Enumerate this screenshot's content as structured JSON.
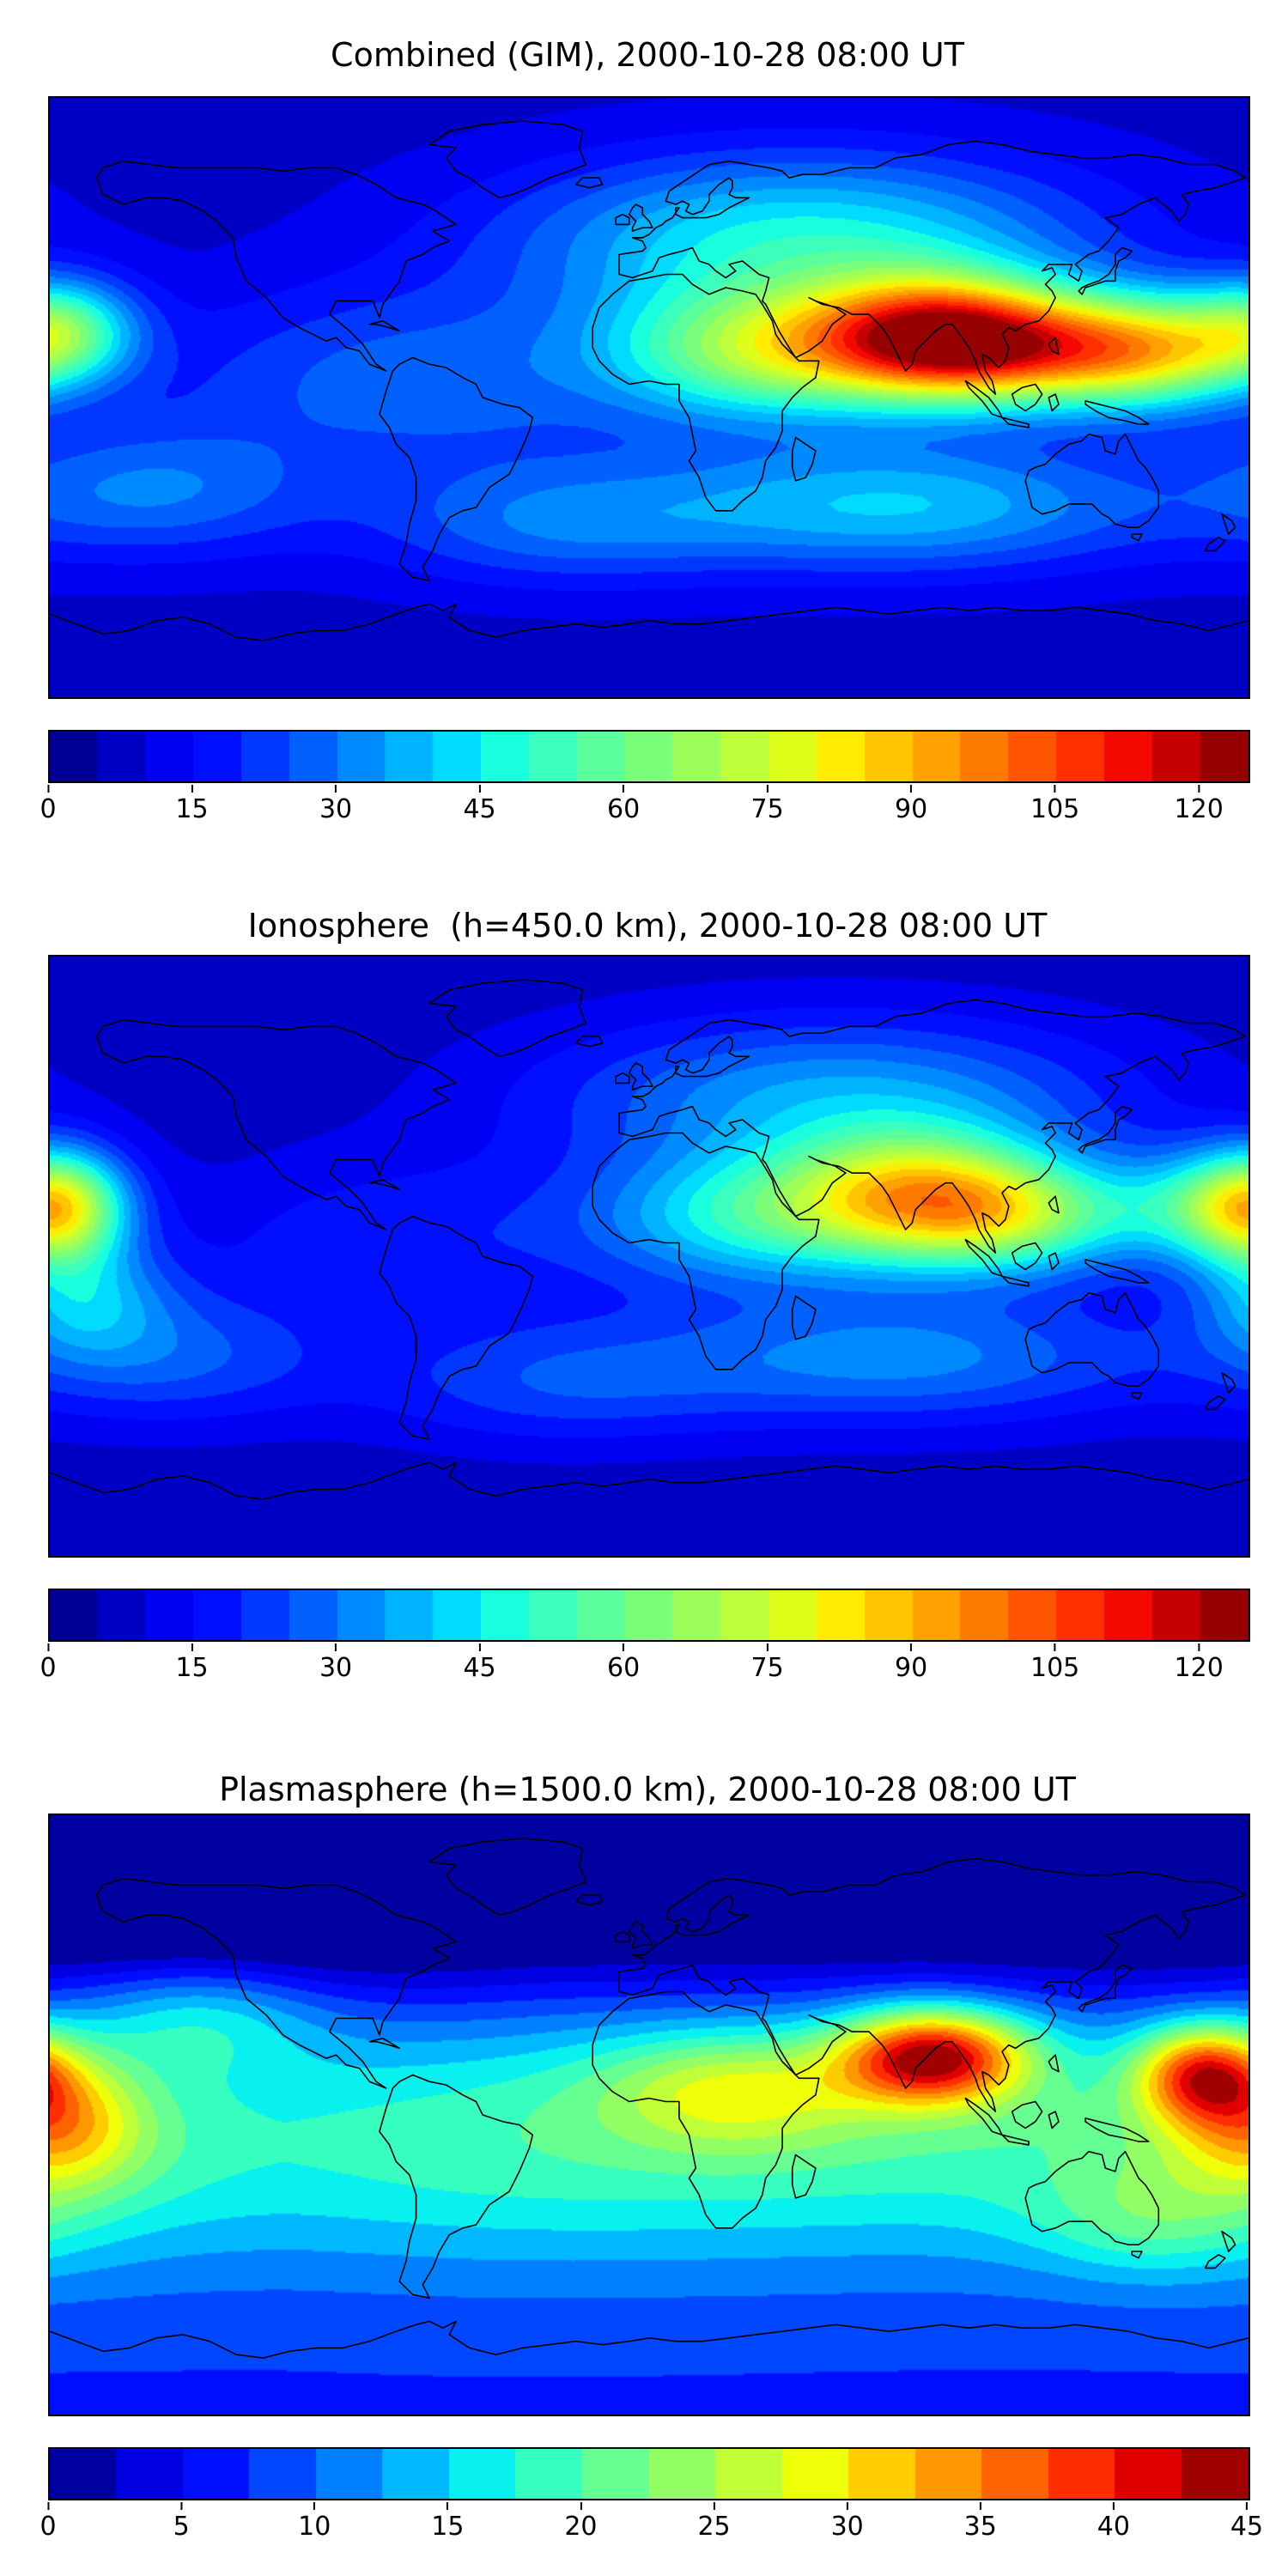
{
  "page": {
    "background": "#ffffff",
    "text_color": "#000000",
    "frame_color": "#000000"
  },
  "chart_data": [
    {
      "type": "heatmap",
      "title": "Combined (GIM), 2000-10-28 08:00 UT",
      "projection": "equirectangular",
      "lon_range": [
        -180,
        180
      ],
      "lat_range": [
        -90,
        90
      ],
      "colormap": "jet",
      "grid": false,
      "contour_levels": {
        "min": 0,
        "max": 125,
        "step": 5
      },
      "colorbar": {
        "orientation": "horizontal",
        "ticks": [
          0,
          15,
          30,
          45,
          60,
          75,
          90,
          105,
          120
        ]
      },
      "peak": {
        "value": 125,
        "lon": 85,
        "lat": 18
      },
      "field_model": {
        "base": 8,
        "gaussians": [
          [
            85,
            18,
            85,
            26,
            13
          ],
          [
            115,
            15,
            50,
            25,
            12
          ],
          [
            150,
            14,
            58,
            22,
            12
          ],
          [
            35,
            14,
            52,
            32,
            14
          ],
          [
            -177,
            20,
            45,
            16,
            11
          ],
          [
            75,
            -32,
            32,
            55,
            14
          ],
          [
            -30,
            -38,
            18,
            40,
            13
          ],
          [
            -150,
            -28,
            20,
            35,
            14
          ],
          [
            45,
            48,
            38,
            60,
            18
          ],
          [
            -70,
            5,
            20,
            55,
            20
          ]
        ]
      }
    },
    {
      "type": "heatmap",
      "title": "Ionosphere  (h=450.0 km), 2000-10-28 08:00 UT",
      "projection": "equirectangular",
      "lon_range": [
        -180,
        180
      ],
      "lat_range": [
        -90,
        90
      ],
      "colormap": "jet",
      "grid": false,
      "contour_levels": {
        "min": 0,
        "max": 125,
        "step": 5
      },
      "colorbar": {
        "orientation": "horizontal",
        "ticks": [
          0,
          15,
          30,
          45,
          60,
          75,
          90,
          105,
          120
        ]
      },
      "peak": {
        "value": 96,
        "lon": 80,
        "lat": 18
      },
      "field_model": {
        "base": 7,
        "gaussians": [
          [
            80,
            18,
            62,
            28,
            14
          ],
          [
            112,
            12,
            40,
            25,
            12
          ],
          [
            165,
            15,
            32,
            20,
            12
          ],
          [
            30,
            12,
            35,
            32,
            14
          ],
          [
            -177,
            15,
            58,
            14,
            12
          ],
          [
            -170,
            -12,
            25,
            18,
            12
          ],
          [
            75,
            -30,
            25,
            55,
            14
          ],
          [
            -30,
            -38,
            15,
            40,
            13
          ],
          [
            -145,
            -30,
            18,
            35,
            14
          ],
          [
            55,
            48,
            28,
            60,
            17
          ],
          [
            -70,
            5,
            12,
            50,
            18
          ]
        ]
      }
    },
    {
      "type": "heatmap",
      "title": "Plasmasphere (h=1500.0 km), 2000-10-28 08:00 UT",
      "projection": "equirectangular",
      "lon_range": [
        -180,
        180
      ],
      "lat_range": [
        -90,
        90
      ],
      "colormap": "jet",
      "grid": false,
      "contour_levels": {
        "min": 0,
        "max": 45,
        "step": 2.5
      },
      "colorbar": {
        "orientation": "horizontal",
        "ticks": [
          0,
          5,
          10,
          15,
          20,
          25,
          30,
          35,
          40,
          45
        ]
      },
      "peak": {
        "value": 43,
        "lon": 85,
        "lat": 18
      },
      "field_model": {
        "base": 7,
        "gaussians": [
          [
            -60,
            -8,
            10,
            70,
            28
          ],
          [
            70,
            -5,
            10,
            70,
            28
          ],
          [
            175,
            -10,
            8,
            50,
            26
          ],
          [
            85,
            18,
            30,
            20,
            10
          ],
          [
            166,
            13,
            22,
            14,
            10
          ],
          [
            -177,
            -2,
            14,
            18,
            14
          ],
          [
            25,
            8,
            11,
            28,
            12
          ],
          [
            150,
            -32,
            6,
            25,
            12
          ],
          [
            -135,
            30,
            8,
            25,
            12
          ],
          [
            0,
            68,
            -7,
            130,
            22
          ],
          [
            150,
            68,
            -7,
            110,
            22
          ],
          [
            -100,
            62,
            -4,
            80,
            18
          ]
        ]
      }
    }
  ]
}
